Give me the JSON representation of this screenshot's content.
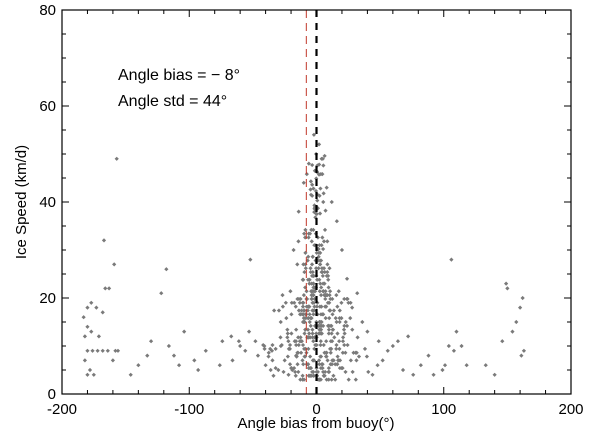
{
  "chart_data": {
    "type": "scatter",
    "title": "",
    "xlabel": "Angle bias from buoy(°)",
    "ylabel": "Ice Speed (km/d)",
    "xlim": [
      -200,
      200
    ],
    "ylim": [
      0,
      80
    ],
    "x_ticks": [
      "-200",
      "-100",
      "0",
      "100",
      "200"
    ],
    "y_ticks": [
      "0",
      "20",
      "40",
      "60",
      "80"
    ],
    "annotations": [
      "Angle bias = − 8°",
      "Angle std = 44°"
    ],
    "reference_lines": [
      {
        "name": "zero",
        "x": 0,
        "style": "dashed",
        "color": "#000000"
      },
      {
        "name": "bias",
        "x": -8,
        "style": "dashed",
        "color": "#c0392b"
      }
    ],
    "marker_color": "#7a7a7a",
    "points": [
      [
        -180,
        4
      ],
      [
        -178,
        5
      ],
      [
        -175,
        4
      ],
      [
        -182,
        7
      ],
      [
        -180,
        9
      ],
      [
        -176,
        9
      ],
      [
        -172,
        9
      ],
      [
        -168,
        9
      ],
      [
        -164,
        9
      ],
      [
        -160,
        7
      ],
      [
        -158,
        9
      ],
      [
        -156,
        9
      ],
      [
        -182,
        12
      ],
      [
        -180,
        14
      ],
      [
        -177,
        13
      ],
      [
        -171,
        12
      ],
      [
        -183,
        16
      ],
      [
        -180,
        18
      ],
      [
        -177,
        19
      ],
      [
        -173,
        18
      ],
      [
        -168,
        17
      ],
      [
        -166,
        22
      ],
      [
        -163,
        22
      ],
      [
        -167,
        32
      ],
      [
        -159,
        27
      ],
      [
        -157,
        49
      ],
      [
        -146,
        4
      ],
      [
        -140,
        6
      ],
      [
        -133,
        8
      ],
      [
        -130,
        11
      ],
      [
        -122,
        21
      ],
      [
        -118,
        26
      ],
      [
        -116,
        10
      ],
      [
        -112,
        8
      ],
      [
        -104,
        13
      ],
      [
        -93,
        5
      ],
      [
        -76,
        6
      ],
      [
        -66,
        7
      ],
      [
        -60,
        10
      ],
      [
        -53,
        13
      ],
      [
        -46,
        8
      ],
      [
        -40,
        6
      ],
      [
        -36,
        5
      ],
      [
        -30,
        5
      ],
      [
        -22,
        4
      ],
      [
        -52,
        28
      ],
      [
        -108,
        6
      ],
      [
        -96,
        7
      ],
      [
        -87,
        9
      ],
      [
        -74,
        11
      ],
      [
        -67,
        12
      ],
      [
        -61,
        11
      ],
      [
        -56,
        9
      ],
      [
        -48,
        11
      ],
      [
        -41,
        10
      ],
      [
        -35,
        9
      ],
      [
        -28,
        10
      ],
      [
        -25,
        7
      ],
      [
        -19,
        5
      ],
      [
        -16,
        8
      ],
      [
        68,
        5
      ],
      [
        72,
        12
      ],
      [
        76,
        4
      ],
      [
        82,
        6
      ],
      [
        88,
        8
      ],
      [
        92,
        4
      ],
      [
        99,
        5
      ],
      [
        101,
        6
      ],
      [
        104,
        10
      ],
      [
        106,
        28
      ],
      [
        108,
        9
      ],
      [
        110,
        13
      ],
      [
        114,
        10
      ],
      [
        118,
        6
      ],
      [
        133,
        6
      ],
      [
        140,
        4
      ],
      [
        146,
        11
      ],
      [
        150,
        22
      ],
      [
        154,
        13
      ],
      [
        157,
        15
      ],
      [
        160,
        18
      ],
      [
        162,
        20
      ],
      [
        161,
        8
      ],
      [
        163,
        9
      ],
      [
        149,
        23
      ],
      [
        44,
        4
      ],
      [
        48,
        6
      ],
      [
        52,
        7
      ],
      [
        56,
        9
      ],
      [
        60,
        10
      ],
      [
        64,
        11
      ],
      [
        40,
        13
      ],
      [
        36,
        15
      ],
      [
        32,
        21
      ],
      [
        28,
        18
      ],
      [
        24,
        24
      ],
      [
        20,
        30
      ],
      [
        16,
        36
      ],
      [
        12,
        40
      ],
      [
        8,
        43
      ],
      [
        5,
        49
      ],
      [
        2,
        52
      ],
      [
        -2,
        54
      ],
      [
        -6,
        48
      ],
      [
        -10,
        44
      ],
      [
        -14,
        38
      ],
      [
        -18,
        30
      ]
    ]
  }
}
